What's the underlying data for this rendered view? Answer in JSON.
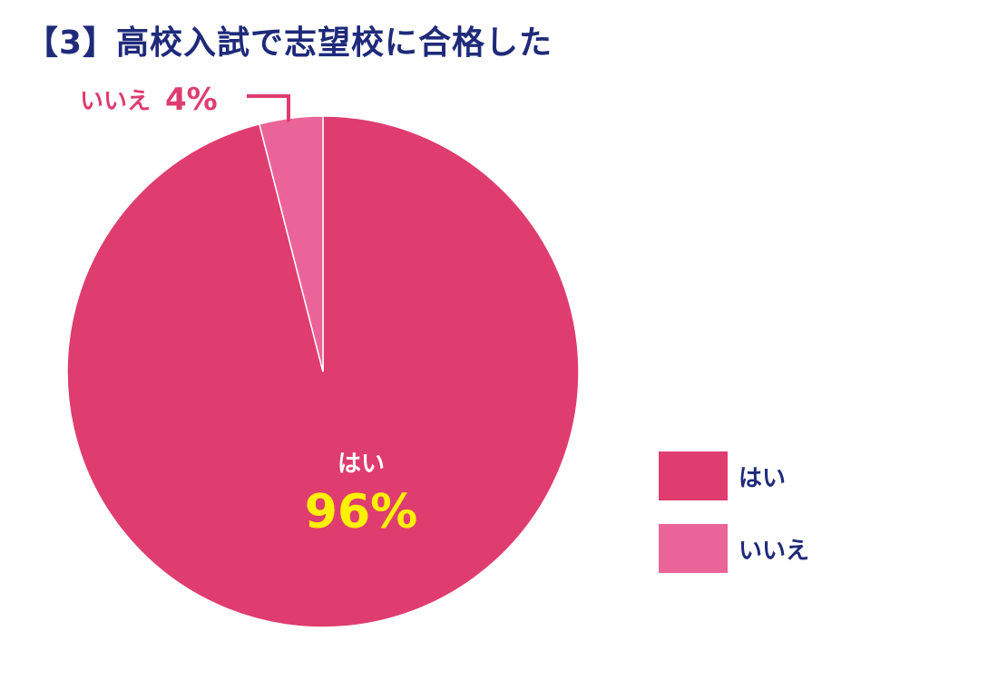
{
  "title": "【3】高校入試で志望校に合格した",
  "chart_data": {
    "type": "pie",
    "categories": [
      "はい",
      "いいえ"
    ],
    "values": [
      96,
      4
    ],
    "data_labels": [
      "96%",
      "4%"
    ],
    "colors": [
      "#df3d6f",
      "#eb6499"
    ],
    "label_colors": {
      "inside_name": "#ffffff",
      "inside_value": "#fff100",
      "outside": "#df3d6f"
    },
    "start_angle_deg": 0,
    "direction": "clockwise",
    "legend_position": "right"
  },
  "legend": {
    "items": [
      {
        "label": "はい",
        "color": "#df3d6f"
      },
      {
        "label": "いいえ",
        "color": "#eb6499"
      }
    ]
  }
}
